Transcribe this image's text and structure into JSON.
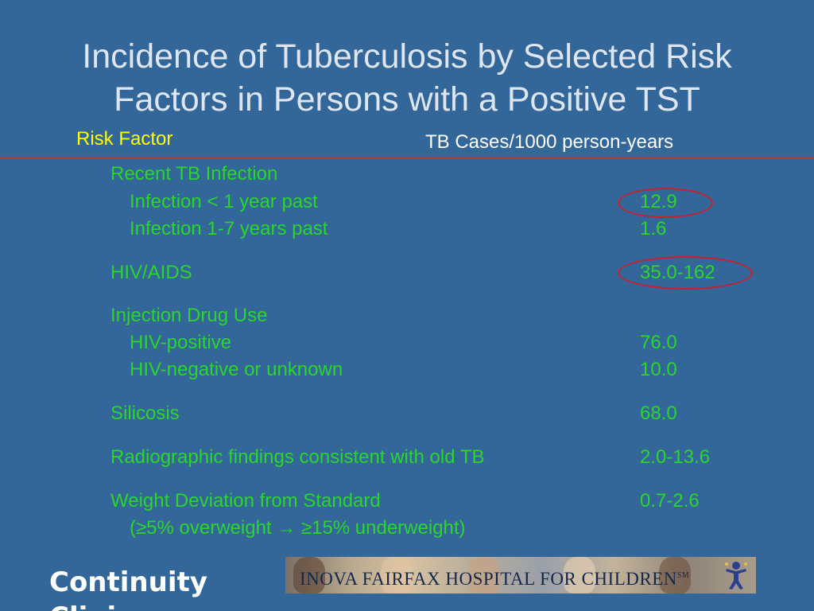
{
  "slide": {
    "title_line1": "Incidence of Tuberculosis by Selected Risk",
    "title_line2": "Factors in Persons with a Positive TST"
  },
  "table": {
    "col_risk_factor": "Risk Factor",
    "col_cases": "TB Cases/1000 person-years",
    "rows": [
      {
        "label": "Recent TB Infection",
        "value": ""
      },
      {
        "label": "Infection < 1 year past",
        "value": "12.9"
      },
      {
        "label": "Infection 1-7 years past",
        "value": "1.6"
      },
      {
        "label": "HIV/AIDS",
        "value": "35.0-162"
      },
      {
        "label": "Injection Drug Use",
        "value": ""
      },
      {
        "label": "HIV-positive",
        "value": "76.0"
      },
      {
        "label": "HIV-negative or unknown",
        "value": "10.0"
      },
      {
        "label": "Silicosis",
        "value": "68.0"
      },
      {
        "label": "Radiographic findings consistent with old TB",
        "value": "2.0-13.6"
      },
      {
        "label": "Weight Deviation from Standard",
        "value": "0.7-2.6"
      },
      {
        "label": "(≥5% overweight → ≥15% underweight)",
        "value": ""
      }
    ]
  },
  "footer": {
    "line1": "Continuity",
    "line2": "Clinic"
  },
  "banner": {
    "text": "INOVA FAIRFAX HOSPITAL FOR CHILDREN",
    "sup": "SM"
  },
  "colors": {
    "background": "#336699",
    "title": "#dde6f2",
    "header_yellow": "#ffff00",
    "body_green": "#2bd62b",
    "highlight_circle": "#cc1f2d",
    "divider": "#a3443f"
  }
}
